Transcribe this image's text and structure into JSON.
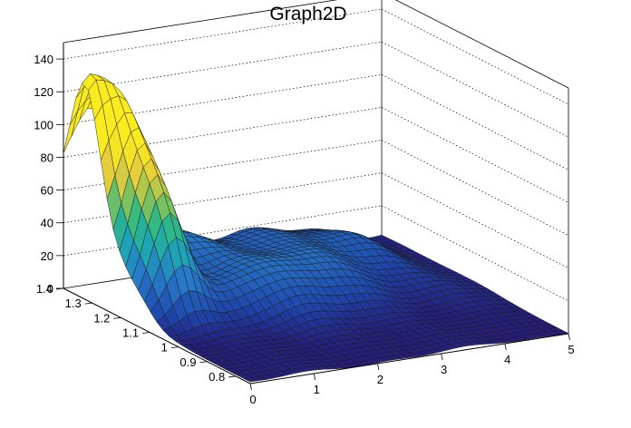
{
  "chart_data": {
    "type": "surface",
    "title": "Graph2D",
    "xlabel": "",
    "ylabel": "",
    "zlabel": "",
    "xlim": [
      0,
      5
    ],
    "ylim": [
      0.75,
      1.4
    ],
    "zlim": [
      0,
      150
    ],
    "x_ticks": [
      "0",
      "1",
      "2",
      "3",
      "4",
      "5"
    ],
    "y_ticks": [
      "0.8",
      "0.9",
      "1",
      "1.1",
      "1.2",
      "1.3",
      "1.4"
    ],
    "z_ticks": [
      "0",
      "20",
      "40",
      "60",
      "80",
      "100",
      "120",
      "140"
    ],
    "colormap": "viridis-like (dark blue → teal → green → yellow)",
    "grid": true,
    "approx_features": [
      {
        "x": 0.0,
        "y": 1.37,
        "z": 130,
        "note": "sharp peak at low x, high y"
      },
      {
        "x": 0.05,
        "y": 1.4,
        "z": 65,
        "note": "ridge plateau at y edge"
      },
      {
        "x": 0.6,
        "y": 1.05,
        "z": 95,
        "note": "yellow ridge crest"
      },
      {
        "x": 0.6,
        "y": 0.85,
        "z": 5,
        "note": "steep drop into low plateau"
      },
      {
        "x": 1.5,
        "y": 1.35,
        "z": 65,
        "note": "green back ridge"
      },
      {
        "x": 3.0,
        "y": 1.15,
        "z": 30,
        "note": "mid-range hills"
      },
      {
        "x": 4.5,
        "y": 1.0,
        "z": 8,
        "note": "flat region"
      },
      {
        "x": 5.0,
        "y": 0.8,
        "z": 0,
        "note": "far corner"
      }
    ]
  }
}
